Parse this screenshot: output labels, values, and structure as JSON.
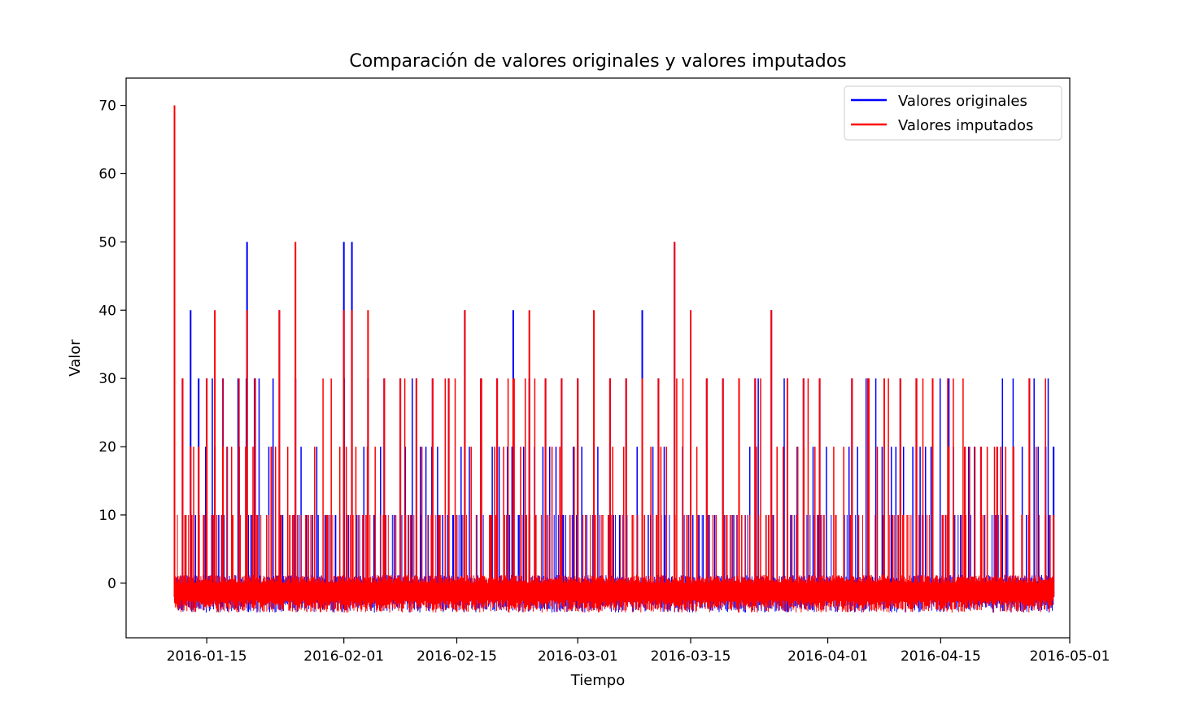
{
  "chart_data": {
    "type": "line",
    "title": "Comparación de valores originales y valores imputados",
    "xlabel": "Tiempo",
    "ylabel": "Valor",
    "xlim": [
      "2016-01-05",
      "2016-05-01"
    ],
    "ylim": [
      -8,
      74
    ],
    "xticks": [
      "2016-01-15",
      "2016-02-01",
      "2016-02-15",
      "2016-03-01",
      "2016-03-15",
      "2016-04-01",
      "2016-04-15",
      "2016-05-01"
    ],
    "yticks": [
      0,
      10,
      20,
      30,
      40,
      50,
      60,
      70
    ],
    "legend_position": "top-right",
    "grid": false,
    "series": [
      {
        "name": "Valores originales",
        "color": "#0000ff",
        "x": [
          "2016-01-11",
          "2016-01-12",
          "2016-01-13",
          "2016-01-14",
          "2016-01-15",
          "2016-01-16",
          "2016-01-17",
          "2016-01-19",
          "2016-01-20",
          "2016-01-21",
          "2016-01-23",
          "2016-01-24",
          "2016-01-26",
          "2016-01-28",
          "2016-01-30",
          "2016-02-01",
          "2016-02-02",
          "2016-02-04",
          "2016-02-06",
          "2016-02-08",
          "2016-02-10",
          "2016-02-12",
          "2016-02-14",
          "2016-02-16",
          "2016-02-18",
          "2016-02-20",
          "2016-02-22",
          "2016-02-24",
          "2016-02-26",
          "2016-02-28",
          "2016-03-01",
          "2016-03-03",
          "2016-03-05",
          "2016-03-07",
          "2016-03-09",
          "2016-03-11",
          "2016-03-13",
          "2016-03-15",
          "2016-03-17",
          "2016-03-19",
          "2016-03-21",
          "2016-03-23",
          "2016-03-25",
          "2016-03-27",
          "2016-03-29",
          "2016-03-31",
          "2016-04-02",
          "2016-04-04",
          "2016-04-06",
          "2016-04-08",
          "2016-04-10",
          "2016-04-12",
          "2016-04-14",
          "2016-04-16",
          "2016-04-18",
          "2016-04-20",
          "2016-04-22",
          "2016-04-24",
          "2016-04-26",
          "2016-04-28",
          "2016-04-29"
        ],
        "y": [
          70,
          30,
          40,
          30,
          30,
          20,
          30,
          20,
          50,
          30,
          20,
          40,
          30,
          0,
          10,
          50,
          50,
          30,
          30,
          30,
          30,
          30,
          30,
          40,
          30,
          30,
          40,
          30,
          30,
          30,
          30,
          30,
          30,
          30,
          40,
          30,
          50,
          30,
          30,
          30,
          30,
          30,
          40,
          30,
          30,
          30,
          10,
          30,
          30,
          10,
          30,
          30,
          30,
          30,
          20,
          20,
          20,
          20,
          30,
          20,
          20
        ]
      },
      {
        "name": "Valores imputados",
        "color": "#ff0000",
        "x": [
          "2016-01-11",
          "2016-01-12",
          "2016-01-13",
          "2016-01-14",
          "2016-01-15",
          "2016-01-16",
          "2016-01-17",
          "2016-01-19",
          "2016-01-20",
          "2016-01-21",
          "2016-01-23",
          "2016-01-24",
          "2016-01-26",
          "2016-01-28",
          "2016-01-30",
          "2016-02-01",
          "2016-02-02",
          "2016-02-04",
          "2016-02-06",
          "2016-02-08",
          "2016-02-10",
          "2016-02-12",
          "2016-02-14",
          "2016-02-16",
          "2016-02-18",
          "2016-02-20",
          "2016-02-22",
          "2016-02-24",
          "2016-02-26",
          "2016-02-28",
          "2016-03-01",
          "2016-03-03",
          "2016-03-05",
          "2016-03-07",
          "2016-03-09",
          "2016-03-11",
          "2016-03-13",
          "2016-03-15",
          "2016-03-17",
          "2016-03-19",
          "2016-03-21",
          "2016-03-23",
          "2016-03-25",
          "2016-03-27",
          "2016-03-29",
          "2016-03-31",
          "2016-04-02",
          "2016-04-04",
          "2016-04-06",
          "2016-04-08",
          "2016-04-10",
          "2016-04-12",
          "2016-04-14",
          "2016-04-16",
          "2016-04-18",
          "2016-04-20",
          "2016-04-22",
          "2016-04-24",
          "2016-04-26",
          "2016-04-28",
          "2016-04-29"
        ],
        "y": [
          70,
          30,
          20,
          20,
          30,
          40,
          20,
          20,
          40,
          30,
          20,
          40,
          50,
          0,
          10,
          40,
          40,
          40,
          30,
          30,
          30,
          30,
          30,
          40,
          30,
          30,
          30,
          40,
          30,
          30,
          30,
          40,
          30,
          30,
          30,
          30,
          50,
          40,
          30,
          30,
          30,
          30,
          40,
          30,
          30,
          30,
          10,
          30,
          30,
          30,
          30,
          30,
          30,
          20,
          20,
          20,
          20,
          20,
          30,
          10,
          10
        ]
      }
    ]
  }
}
